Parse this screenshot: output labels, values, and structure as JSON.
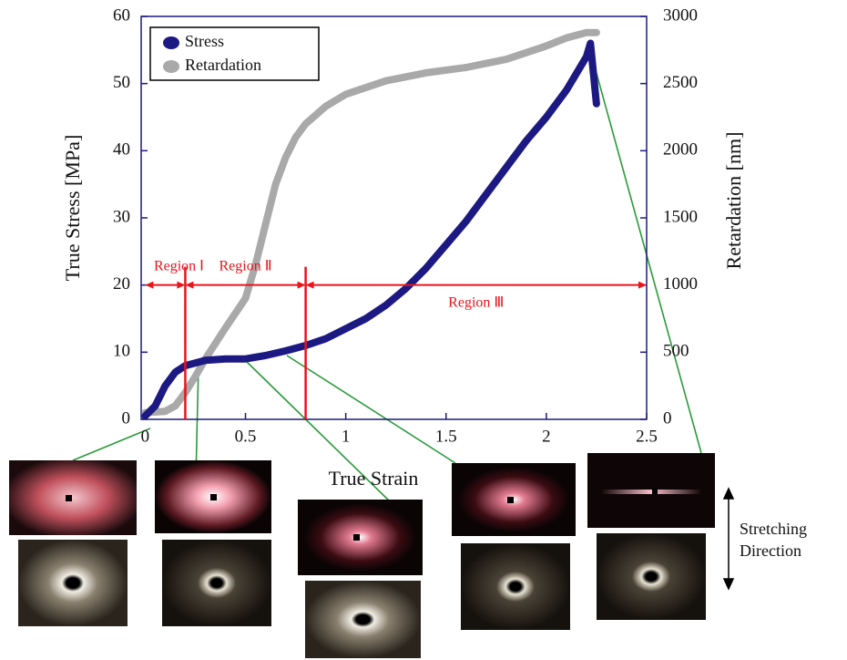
{
  "chart_data": {
    "type": "line",
    "xlabel": "True Strain",
    "ylabel": "True Stress [MPa]",
    "y2label": "Retardation [nm]",
    "xlim": [
      -0.02,
      2.5
    ],
    "xticks": [
      0,
      0.5,
      1,
      1.5,
      2,
      2.5
    ],
    "ylim": [
      0,
      60
    ],
    "yticks": [
      0,
      10,
      20,
      30,
      40,
      50,
      60
    ],
    "y2lim": [
      0,
      3000
    ],
    "y2ticks": [
      0,
      500,
      1000,
      1500,
      2000,
      2500,
      3000
    ],
    "legend": "upper left",
    "series": [
      {
        "name": "Stress",
        "color": "#1c1a82",
        "x": [
          0,
          0.05,
          0.1,
          0.15,
          0.2,
          0.3,
          0.4,
          0.5,
          0.6,
          0.7,
          0.8,
          0.9,
          1.0,
          1.1,
          1.2,
          1.3,
          1.4,
          1.5,
          1.6,
          1.7,
          1.8,
          1.9,
          2.0,
          2.1,
          2.2,
          2.22,
          2.24,
          2.25
        ],
        "values": [
          0.5,
          2,
          5,
          7,
          8,
          8.8,
          9,
          9,
          9.5,
          10.2,
          11,
          12,
          13.5,
          15,
          17,
          19.5,
          22.5,
          26,
          29.5,
          33.5,
          37.5,
          41.5,
          45,
          49,
          54,
          56,
          50,
          47
        ]
      },
      {
        "name": "Retardation",
        "color": "#a9a9a9",
        "axis": "y2",
        "x": [
          0,
          0.1,
          0.15,
          0.2,
          0.25,
          0.3,
          0.4,
          0.5,
          0.55,
          0.6,
          0.65,
          0.7,
          0.75,
          0.8,
          0.9,
          1.0,
          1.2,
          1.4,
          1.6,
          1.8,
          2.0,
          2.1,
          2.2,
          2.25
        ],
        "values": [
          50,
          60,
          100,
          200,
          320,
          450,
          680,
          900,
          1150,
          1450,
          1750,
          1950,
          2100,
          2200,
          2330,
          2420,
          2520,
          2580,
          2620,
          2680,
          2780,
          2840,
          2880,
          2880
        ]
      }
    ],
    "region_color": "#e8141b",
    "region_arrow_y": 20,
    "region_bounds": [
      0.2,
      0.8
    ],
    "regions": [
      {
        "label": "Region Ⅰ",
        "from": 0,
        "to": 0.2
      },
      {
        "label": "Region Ⅱ",
        "from": 0.2,
        "to": 0.8
      },
      {
        "label": "Region Ⅲ",
        "from": 0.8,
        "to": 2.5
      }
    ],
    "direction_label": [
      "Stretching",
      "Direction"
    ]
  }
}
